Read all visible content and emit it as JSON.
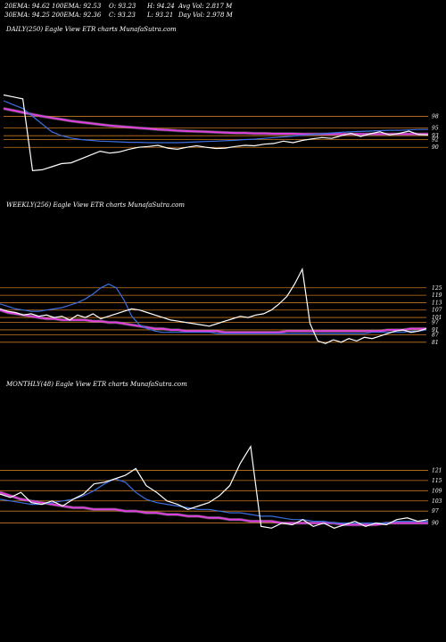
{
  "stats": {
    "ema20": "20EMA: 94.62",
    "ema100": "100EMA: 92.53",
    "open": "O: 93.23",
    "high": "H: 94.24",
    "avgvol": "Avg Vol: 2.817 M",
    "ema30": "30EMA: 94.25",
    "ema200": "200EMA: 92.36",
    "close": "C: 93.23",
    "low": "L: 93.21",
    "dayvol": "Day Vol: 2.978 M"
  },
  "colors": {
    "price": "#ffffff",
    "ema_short": "#3a6fe0",
    "ema_long": "#e040e0",
    "support": "#c87820"
  },
  "chart_data": [
    {
      "type": "line",
      "title": "DAILY(250) Eagle  View  ETR charts MunafaSutra.com",
      "price_ticks": [
        98,
        95,
        93,
        92,
        90
      ],
      "series": [
        {
          "values": [
            103.5,
            103,
            102.5,
            84,
            84.2,
            85,
            85.8,
            86,
            87,
            88,
            89,
            88.5,
            88.8,
            89.5,
            90,
            90.2,
            90.5,
            89.8,
            89.5,
            90,
            90.4,
            90,
            89.7,
            89.8,
            90.2,
            90.5,
            90.4,
            90.8,
            91,
            91.6,
            91.2,
            91.8,
            92.2,
            92.5,
            92.3,
            93,
            93.6,
            92.8,
            93.5,
            94,
            93.2,
            93.6,
            94.2,
            93.3,
            93.2
          ]
        },
        {
          "values": [
            102,
            101,
            100,
            98,
            96,
            94,
            93,
            92.4,
            92,
            91.8,
            91.6,
            91.5,
            91.4,
            91.3,
            91.3,
            91.2,
            91.2,
            91.2,
            91.2,
            91.3,
            91.4,
            91.5,
            91.6,
            91.7,
            91.8,
            92,
            92.1,
            92.3,
            92.5,
            92.7,
            92.9,
            93.1,
            93.3,
            93.5,
            93.7,
            93.9,
            94,
            94.1,
            94.2,
            94.3,
            94.4,
            94.4,
            94.5,
            94.6,
            94.6
          ]
        },
        {
          "values": [
            100,
            99.5,
            99,
            98.5,
            98,
            97.6,
            97.2,
            96.8,
            96.5,
            96.2,
            95.9,
            95.6,
            95.4,
            95.2,
            95,
            94.8,
            94.6,
            94.5,
            94.3,
            94.2,
            94.1,
            94,
            93.9,
            93.8,
            93.7,
            93.7,
            93.6,
            93.6,
            93.5,
            93.5,
            93.5,
            93.4,
            93.4,
            93.4,
            93.4,
            93.4,
            93.4,
            93.4,
            93.4,
            93.4,
            93.4,
            93.4,
            93.4,
            93.4,
            93.4
          ]
        }
      ]
    },
    {
      "type": "line",
      "title": "WEEKLY(256) Eagle  View  ETR charts MunafaSutra.com",
      "price_ticks": [
        125,
        119,
        113,
        107,
        101,
        97,
        91,
        87,
        81
      ],
      "series": [
        {
          "values": [
            108,
            106,
            105,
            103,
            104,
            102,
            103,
            101,
            102,
            99,
            103,
            101,
            104,
            100,
            102,
            104,
            106,
            108,
            107,
            105,
            103,
            101,
            99,
            98,
            97,
            96,
            95,
            94,
            96,
            98,
            100,
            102,
            101,
            103,
            104,
            107,
            112,
            118,
            128,
            140,
            96,
            82,
            80,
            83,
            81,
            84,
            82,
            85,
            84,
            86,
            88,
            90,
            91,
            89,
            90,
            92
          ]
        },
        {
          "values": [
            112,
            110,
            108,
            107,
            106,
            106,
            107,
            108,
            109,
            111,
            113,
            116,
            120,
            125,
            128,
            125,
            115,
            102,
            95,
            92,
            90,
            89,
            89,
            89,
            89,
            89,
            89,
            89,
            88,
            88,
            88,
            88,
            88,
            88,
            88,
            88,
            88,
            88,
            88,
            88,
            88,
            88,
            88,
            88,
            88,
            88,
            88,
            88,
            89,
            89,
            89,
            89,
            89,
            90,
            90,
            91
          ]
        },
        {
          "values": [
            107,
            105,
            104,
            103,
            102,
            101,
            100,
            100,
            99,
            99,
            99,
            99,
            98,
            98,
            97,
            97,
            96,
            95,
            94,
            93,
            92,
            92,
            91,
            91,
            90,
            90,
            90,
            90,
            90,
            89,
            89,
            89,
            89,
            89,
            89,
            89,
            89,
            90,
            90,
            90,
            90,
            90,
            90,
            90,
            90,
            90,
            90,
            90,
            90,
            90,
            91,
            91,
            91,
            92,
            92,
            92
          ]
        }
      ]
    },
    {
      "type": "line",
      "title": "MONTHLY(48) Eagle  View  ETR charts MunafaSutra.com",
      "price_ticks": [
        121,
        115,
        109,
        103,
        97,
        90
      ],
      "series": [
        {
          "values": [
            107,
            105,
            108,
            102,
            101,
            103,
            100,
            104,
            107,
            113,
            114,
            116,
            118,
            122,
            112,
            108,
            103,
            101,
            98,
            100,
            102,
            106,
            112,
            125,
            135,
            88,
            87,
            90,
            89,
            92,
            88,
            90,
            87,
            89,
            91,
            88,
            90,
            89,
            92,
            93,
            91,
            92
          ]
        },
        {
          "values": [
            104,
            103,
            102,
            101,
            101,
            102,
            103,
            104,
            106,
            109,
            113,
            116,
            114,
            108,
            104,
            102,
            101,
            100,
            99,
            98,
            98,
            97,
            96,
            96,
            95,
            94,
            94,
            93,
            92,
            92,
            91,
            91,
            90,
            90,
            90,
            90,
            90,
            90,
            91,
            91,
            91,
            91
          ]
        },
        {
          "values": [
            108,
            106,
            104,
            103,
            102,
            101,
            100,
            99,
            99,
            98,
            98,
            98,
            97,
            97,
            96,
            96,
            95,
            95,
            94,
            94,
            93,
            93,
            92,
            92,
            91,
            91,
            91,
            90,
            90,
            90,
            90,
            90,
            90,
            89,
            89,
            89,
            89,
            90,
            90,
            90,
            90,
            90
          ]
        }
      ]
    }
  ]
}
